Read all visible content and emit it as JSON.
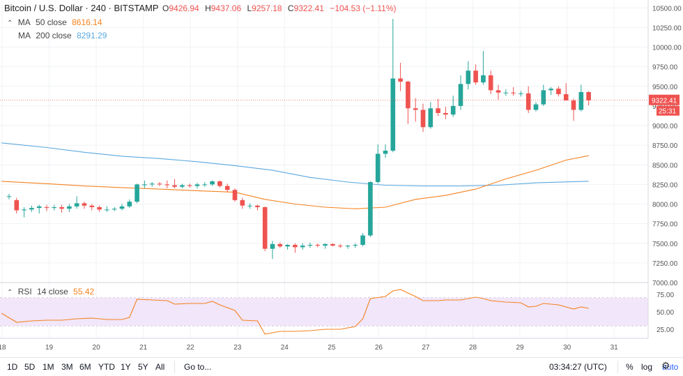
{
  "header": {
    "title": "Bitcoin / U.S. Dollar · 240 · BITSTAMP",
    "ohlc": [
      {
        "label": "O",
        "value": "9426.94"
      },
      {
        "label": "H",
        "value": "9437.06"
      },
      {
        "label": "L",
        "value": "9257.18"
      },
      {
        "label": "C",
        "value": "9322.41"
      }
    ],
    "change": "−104.53 (−1.11%)"
  },
  "indicators": {
    "ma50": {
      "name": "MA",
      "params": "50 close",
      "value": "8616.14",
      "color": "#f5821f"
    },
    "ma200": {
      "name": "MA",
      "params": "200 close",
      "value": "8291.29",
      "color": "#5aa8e0"
    },
    "rsi": {
      "name": "RSI",
      "params": "14 close",
      "value": "55.42",
      "color": "#f5821f"
    }
  },
  "price_tag": {
    "price": "9322.41",
    "countdown": "25:31"
  },
  "colors": {
    "up": "#26a69a",
    "down": "#ef5350",
    "rsi_band": "#f1e6fa",
    "ma50": "#f5821f",
    "ma200": "#5aa8e0",
    "rsi_line": "#f5821f"
  },
  "bottom_bar": {
    "timeframes": [
      "1D",
      "5D",
      "1M",
      "3M",
      "6M",
      "YTD",
      "1Y",
      "5Y",
      "All"
    ],
    "goto": "Go to...",
    "time": "03:34:27 (UTC)",
    "percent": "%",
    "log": "log",
    "auto": "auto"
  },
  "chart_data": {
    "type": "candlestick",
    "price_axis": {
      "ticks": [
        "10500.00",
        "10250.00",
        "10000.00",
        "9750.00",
        "9500.00",
        "9250.00",
        "9000.00",
        "8750.00",
        "8500.00",
        "8250.00",
        "8000.00",
        "7750.00",
        "7500.00",
        "7250.00",
        "7000.00"
      ],
      "ylim": [
        7000,
        10600
      ]
    },
    "x_axis": {
      "ticks": [
        "18",
        "19",
        "20",
        "21",
        "22",
        "23",
        "24",
        "25",
        "26",
        "27",
        "28",
        "29",
        "30",
        "31"
      ]
    },
    "candles": [
      {
        "o": 8100,
        "h": 8130,
        "l": 8060,
        "c": 8100
      },
      {
        "o": 8050,
        "h": 8080,
        "l": 7880,
        "c": 7920
      },
      {
        "o": 7920,
        "h": 7960,
        "l": 7830,
        "c": 7930
      },
      {
        "o": 7930,
        "h": 7980,
        "l": 7900,
        "c": 7950
      },
      {
        "o": 7950,
        "h": 7990,
        "l": 7880,
        "c": 7970
      },
      {
        "o": 7960,
        "h": 7990,
        "l": 7910,
        "c": 7950
      },
      {
        "o": 7950,
        "h": 7990,
        "l": 7920,
        "c": 7960
      },
      {
        "o": 7960,
        "h": 7990,
        "l": 7890,
        "c": 7940
      },
      {
        "o": 7940,
        "h": 8000,
        "l": 7900,
        "c": 7970
      },
      {
        "o": 7970,
        "h": 8100,
        "l": 7940,
        "c": 8010
      },
      {
        "o": 8010,
        "h": 8030,
        "l": 7940,
        "c": 7980
      },
      {
        "o": 7980,
        "h": 8000,
        "l": 7920,
        "c": 7960
      },
      {
        "o": 7960,
        "h": 7980,
        "l": 7900,
        "c": 7930
      },
      {
        "o": 7930,
        "h": 7970,
        "l": 7900,
        "c": 7930
      },
      {
        "o": 7930,
        "h": 7960,
        "l": 7910,
        "c": 7940
      },
      {
        "o": 7940,
        "h": 8000,
        "l": 7920,
        "c": 7970
      },
      {
        "o": 7970,
        "h": 8060,
        "l": 7950,
        "c": 8030
      },
      {
        "o": 8030,
        "h": 8260,
        "l": 8010,
        "c": 8250
      },
      {
        "o": 8240,
        "h": 8300,
        "l": 8200,
        "c": 8250
      },
      {
        "o": 8250,
        "h": 8280,
        "l": 8220,
        "c": 8260
      },
      {
        "o": 8260,
        "h": 8280,
        "l": 8230,
        "c": 8250
      },
      {
        "o": 8250,
        "h": 8300,
        "l": 8200,
        "c": 8240
      },
      {
        "o": 8240,
        "h": 8320,
        "l": 8200,
        "c": 8220
      },
      {
        "o": 8220,
        "h": 8260,
        "l": 8200,
        "c": 8240
      },
      {
        "o": 8240,
        "h": 8260,
        "l": 8210,
        "c": 8230
      },
      {
        "o": 8230,
        "h": 8270,
        "l": 8200,
        "c": 8250
      },
      {
        "o": 8250,
        "h": 8280,
        "l": 8220,
        "c": 8250
      },
      {
        "o": 8250,
        "h": 8300,
        "l": 8230,
        "c": 8290
      },
      {
        "o": 8290,
        "h": 8300,
        "l": 8210,
        "c": 8230
      },
      {
        "o": 8230,
        "h": 8260,
        "l": 8150,
        "c": 8180
      },
      {
        "o": 8180,
        "h": 8200,
        "l": 8030,
        "c": 8050
      },
      {
        "o": 8050,
        "h": 8080,
        "l": 7940,
        "c": 7980
      },
      {
        "o": 7980,
        "h": 8010,
        "l": 7940,
        "c": 7980
      },
      {
        "o": 7980,
        "h": 7990,
        "l": 7920,
        "c": 7960
      },
      {
        "o": 7960,
        "h": 7970,
        "l": 7400,
        "c": 7430
      },
      {
        "o": 7430,
        "h": 7530,
        "l": 7300,
        "c": 7490
      },
      {
        "o": 7490,
        "h": 7510,
        "l": 7440,
        "c": 7460
      },
      {
        "o": 7460,
        "h": 7490,
        "l": 7420,
        "c": 7480
      },
      {
        "o": 7480,
        "h": 7500,
        "l": 7380,
        "c": 7450
      },
      {
        "o": 7450,
        "h": 7500,
        "l": 7420,
        "c": 7470
      },
      {
        "o": 7470,
        "h": 7510,
        "l": 7440,
        "c": 7480
      },
      {
        "o": 7480,
        "h": 7500,
        "l": 7450,
        "c": 7470
      },
      {
        "o": 7470,
        "h": 7500,
        "l": 7430,
        "c": 7490
      },
      {
        "o": 7490,
        "h": 7500,
        "l": 7460,
        "c": 7470
      },
      {
        "o": 7470,
        "h": 7490,
        "l": 7440,
        "c": 7460
      },
      {
        "o": 7460,
        "h": 7480,
        "l": 7430,
        "c": 7470
      },
      {
        "o": 7470,
        "h": 7500,
        "l": 7440,
        "c": 7480
      },
      {
        "o": 7480,
        "h": 7630,
        "l": 7460,
        "c": 7600
      },
      {
        "o": 7600,
        "h": 8290,
        "l": 7580,
        "c": 8280
      },
      {
        "o": 8280,
        "h": 8760,
        "l": 8260,
        "c": 8640
      },
      {
        "o": 8640,
        "h": 8760,
        "l": 8590,
        "c": 8680
      },
      {
        "o": 8680,
        "h": 10360,
        "l": 8660,
        "c": 9600
      },
      {
        "o": 9600,
        "h": 9800,
        "l": 9440,
        "c": 9560
      },
      {
        "o": 9560,
        "h": 9570,
        "l": 9020,
        "c": 9220
      },
      {
        "o": 9220,
        "h": 9350,
        "l": 9050,
        "c": 9200
      },
      {
        "o": 9200,
        "h": 9280,
        "l": 8920,
        "c": 8980
      },
      {
        "o": 8980,
        "h": 9300,
        "l": 8960,
        "c": 9220
      },
      {
        "o": 9220,
        "h": 9340,
        "l": 9120,
        "c": 9160
      },
      {
        "o": 9160,
        "h": 9240,
        "l": 9080,
        "c": 9140
      },
      {
        "o": 9140,
        "h": 9380,
        "l": 9110,
        "c": 9250
      },
      {
        "o": 9250,
        "h": 9640,
        "l": 9200,
        "c": 9530
      },
      {
        "o": 9530,
        "h": 9820,
        "l": 9460,
        "c": 9700
      },
      {
        "o": 9700,
        "h": 9780,
        "l": 9520,
        "c": 9550
      },
      {
        "o": 9550,
        "h": 9950,
        "l": 9520,
        "c": 9640
      },
      {
        "o": 9640,
        "h": 9700,
        "l": 9400,
        "c": 9450
      },
      {
        "o": 9450,
        "h": 9520,
        "l": 9330,
        "c": 9420
      },
      {
        "o": 9420,
        "h": 9460,
        "l": 9380,
        "c": 9420
      },
      {
        "o": 9420,
        "h": 9490,
        "l": 9380,
        "c": 9410
      },
      {
        "o": 9410,
        "h": 9440,
        "l": 9370,
        "c": 9410
      },
      {
        "o": 9410,
        "h": 9500,
        "l": 9160,
        "c": 9200
      },
      {
        "o": 9200,
        "h": 9300,
        "l": 9180,
        "c": 9270
      },
      {
        "o": 9270,
        "h": 9520,
        "l": 9250,
        "c": 9450
      },
      {
        "o": 9450,
        "h": 9490,
        "l": 9390,
        "c": 9470
      },
      {
        "o": 9470,
        "h": 9500,
        "l": 9370,
        "c": 9400
      },
      {
        "o": 9400,
        "h": 9540,
        "l": 9350,
        "c": 9320
      },
      {
        "o": 9320,
        "h": 9340,
        "l": 9060,
        "c": 9200
      },
      {
        "o": 9200,
        "h": 9520,
        "l": 9180,
        "c": 9426.94
      },
      {
        "o": 9426.94,
        "h": 9437.06,
        "l": 9257.18,
        "c": 9322.41
      }
    ],
    "ma50_line": [
      [
        -1,
        8290
      ],
      [
        5,
        8260
      ],
      [
        10,
        8230
      ],
      [
        15,
        8210
      ],
      [
        20,
        8190
      ],
      [
        25,
        8170
      ],
      [
        30,
        8150
      ],
      [
        34,
        8060
      ],
      [
        38,
        8000
      ],
      [
        42,
        7960
      ],
      [
        46,
        7940
      ],
      [
        50,
        7960
      ],
      [
        54,
        8060
      ],
      [
        58,
        8110
      ],
      [
        62,
        8190
      ],
      [
        66,
        8320
      ],
      [
        70,
        8430
      ],
      [
        74,
        8560
      ],
      [
        77,
        8616
      ]
    ],
    "ma200_line": [
      [
        -1,
        8780
      ],
      [
        5,
        8720
      ],
      [
        10,
        8660
      ],
      [
        15,
        8610
      ],
      [
        20,
        8580
      ],
      [
        25,
        8540
      ],
      [
        30,
        8490
      ],
      [
        35,
        8430
      ],
      [
        40,
        8340
      ],
      [
        45,
        8280
      ],
      [
        50,
        8240
      ],
      [
        55,
        8230
      ],
      [
        60,
        8230
      ],
      [
        65,
        8240
      ],
      [
        70,
        8270
      ],
      [
        77,
        8291
      ]
    ],
    "rsi": {
      "ticks": [
        "75.00",
        "50.00",
        "25.00"
      ],
      "ylim": [
        12,
        92
      ],
      "band": [
        30,
        70
      ],
      "line": [
        [
          -1,
          48
        ],
        [
          1,
          35
        ],
        [
          3,
          37
        ],
        [
          5,
          38
        ],
        [
          7,
          38
        ],
        [
          9,
          40
        ],
        [
          11,
          41
        ],
        [
          13,
          39
        ],
        [
          15,
          39
        ],
        [
          16,
          42
        ],
        [
          17,
          68
        ],
        [
          19,
          67
        ],
        [
          21,
          66
        ],
        [
          22,
          61
        ],
        [
          24,
          62
        ],
        [
          26,
          62
        ],
        [
          27,
          65
        ],
        [
          28,
          60
        ],
        [
          30,
          52
        ],
        [
          31,
          38
        ],
        [
          33,
          37
        ],
        [
          34,
          18
        ],
        [
          36,
          22
        ],
        [
          38,
          22
        ],
        [
          40,
          23
        ],
        [
          42,
          25
        ],
        [
          44,
          25
        ],
        [
          46,
          29
        ],
        [
          47,
          40
        ],
        [
          48,
          69
        ],
        [
          50,
          72
        ],
        [
          51,
          80
        ],
        [
          52,
          82
        ],
        [
          54,
          72
        ],
        [
          55,
          66
        ],
        [
          57,
          66
        ],
        [
          58,
          67
        ],
        [
          60,
          67
        ],
        [
          61,
          69
        ],
        [
          62,
          71
        ],
        [
          63,
          69
        ],
        [
          64,
          66
        ],
        [
          66,
          64
        ],
        [
          68,
          63
        ],
        [
          69,
          57
        ],
        [
          70,
          58
        ],
        [
          71,
          62
        ],
        [
          73,
          60
        ],
        [
          75,
          54
        ],
        [
          76,
          57
        ],
        [
          77,
          55
        ]
      ]
    }
  }
}
